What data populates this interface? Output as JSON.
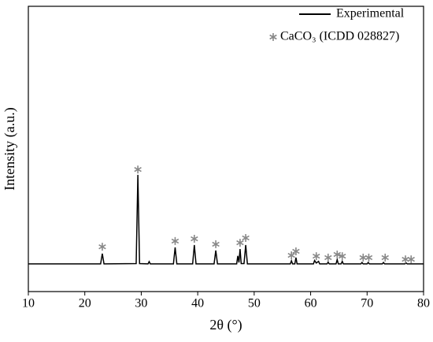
{
  "chart_data": {
    "type": "line",
    "xlabel": "2θ (°)",
    "ylabel": "Intensity (a.u.)",
    "xlim": [
      10,
      80
    ],
    "xticks": [
      10,
      20,
      30,
      40,
      50,
      60,
      70,
      80
    ],
    "ylim": [
      0,
      100
    ],
    "legend": "upper right",
    "series": [
      {
        "name": "Experimental",
        "color": "#000000",
        "mark": "line",
        "x": [
          10,
          22.8,
          23.1,
          23.4,
          29.1,
          29.4,
          29.7,
          31.2,
          31.4,
          31.6,
          35.7,
          36.0,
          36.3,
          39.1,
          39.4,
          39.7,
          42.9,
          43.2,
          43.5,
          46.9,
          47.1,
          47.3,
          47.5,
          47.7,
          48.2,
          48.5,
          48.8,
          56.4,
          56.6,
          56.8,
          57.2,
          57.4,
          57.6,
          60.5,
          60.7,
          61.0,
          61.4,
          61.6,
          62.9,
          63.1,
          63.3,
          64.5,
          64.7,
          64.9,
          65.4,
          65.6,
          65.8,
          68.9,
          69.1,
          69.3,
          70.0,
          70.2,
          70.4,
          72.7,
          72.9,
          73.1,
          76.7,
          76.9,
          77.1,
          77.4,
          80
        ],
        "values": [
          9.7,
          9.7,
          13.3,
          9.7,
          9.8,
          40.9,
          9.8,
          9.7,
          10.5,
          9.7,
          9.7,
          15.5,
          9.7,
          9.7,
          16.3,
          9.7,
          9.7,
          14.4,
          9.7,
          9.7,
          12.5,
          10.2,
          14.9,
          9.8,
          9.8,
          16.3,
          9.7,
          9.7,
          10.8,
          9.7,
          9.7,
          11.9,
          9.7,
          9.7,
          10.9,
          10.0,
          10.6,
          9.7,
          9.7,
          10.3,
          9.7,
          9.7,
          11.2,
          9.7,
          9.7,
          10.6,
          9.7,
          9.7,
          10.2,
          9.7,
          9.7,
          10.2,
          9.7,
          9.7,
          10.2,
          9.7,
          9.7,
          10.1,
          9.7,
          9.7,
          9.7
        ]
      },
      {
        "name": "CaCO₃ (ICDD 028827)",
        "color": "#888888",
        "mark": "asterisk",
        "x": [
          23.1,
          29.4,
          36.0,
          39.4,
          43.2,
          47.5,
          48.5,
          56.6,
          57.4,
          61.0,
          63.1,
          64.7,
          65.6,
          69.3,
          70.3,
          73.2,
          76.8,
          77.8
        ],
        "values": [
          15.7,
          42.8,
          17.7,
          18.5,
          16.6,
          17.1,
          18.8,
          12.7,
          14.1,
          12.4,
          11.9,
          13.0,
          12.4,
          11.9,
          11.9,
          11.9,
          11.3,
          11.3
        ]
      }
    ]
  }
}
